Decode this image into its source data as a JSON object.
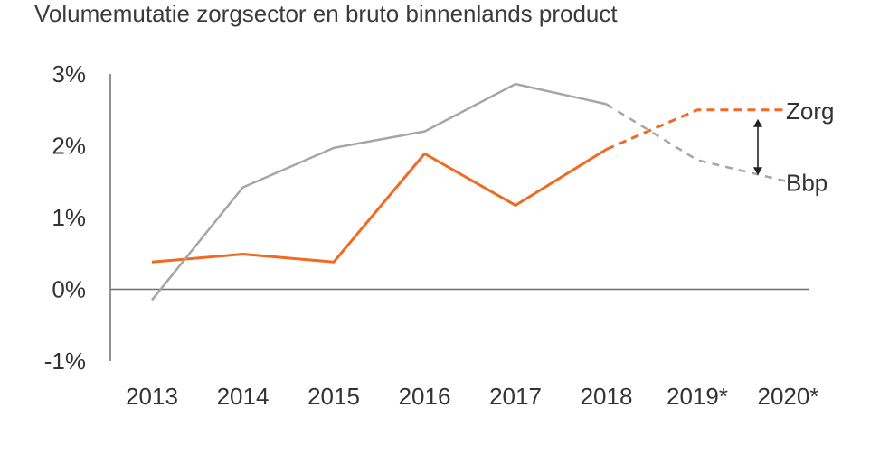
{
  "chart_data": {
    "type": "line",
    "title": "Volumemutatie zorgsector en bruto binnenlands product",
    "xlabel": "",
    "ylabel": "",
    "categories": [
      "2013",
      "2014",
      "2015",
      "2016",
      "2017",
      "2018",
      "2019*",
      "2020*"
    ],
    "ylim": [
      -1,
      3
    ],
    "yticks": [
      {
        "value": 3,
        "label": "3%"
      },
      {
        "value": 2,
        "label": "2%"
      },
      {
        "value": 1,
        "label": "1%"
      },
      {
        "value": 0,
        "label": "0%"
      },
      {
        "value": -1,
        "label": "-1%"
      }
    ],
    "grid": false,
    "series": [
      {
        "name": "Zorg",
        "color": "#f26a21",
        "values": [
          0.38,
          0.49,
          0.38,
          1.89,
          1.17,
          1.95,
          2.5,
          2.5
        ],
        "forecast_from_index": 5
      },
      {
        "name": "Bbp",
        "color": "#a6a6a6",
        "values": [
          -0.15,
          1.42,
          1.97,
          2.2,
          2.86,
          2.58,
          1.8,
          1.5
        ],
        "forecast_from_index": 5
      }
    ],
    "annotations": [
      {
        "type": "double-arrow",
        "between_series": [
          "Zorg",
          "Bbp"
        ],
        "at_category": "2020*"
      }
    ]
  }
}
